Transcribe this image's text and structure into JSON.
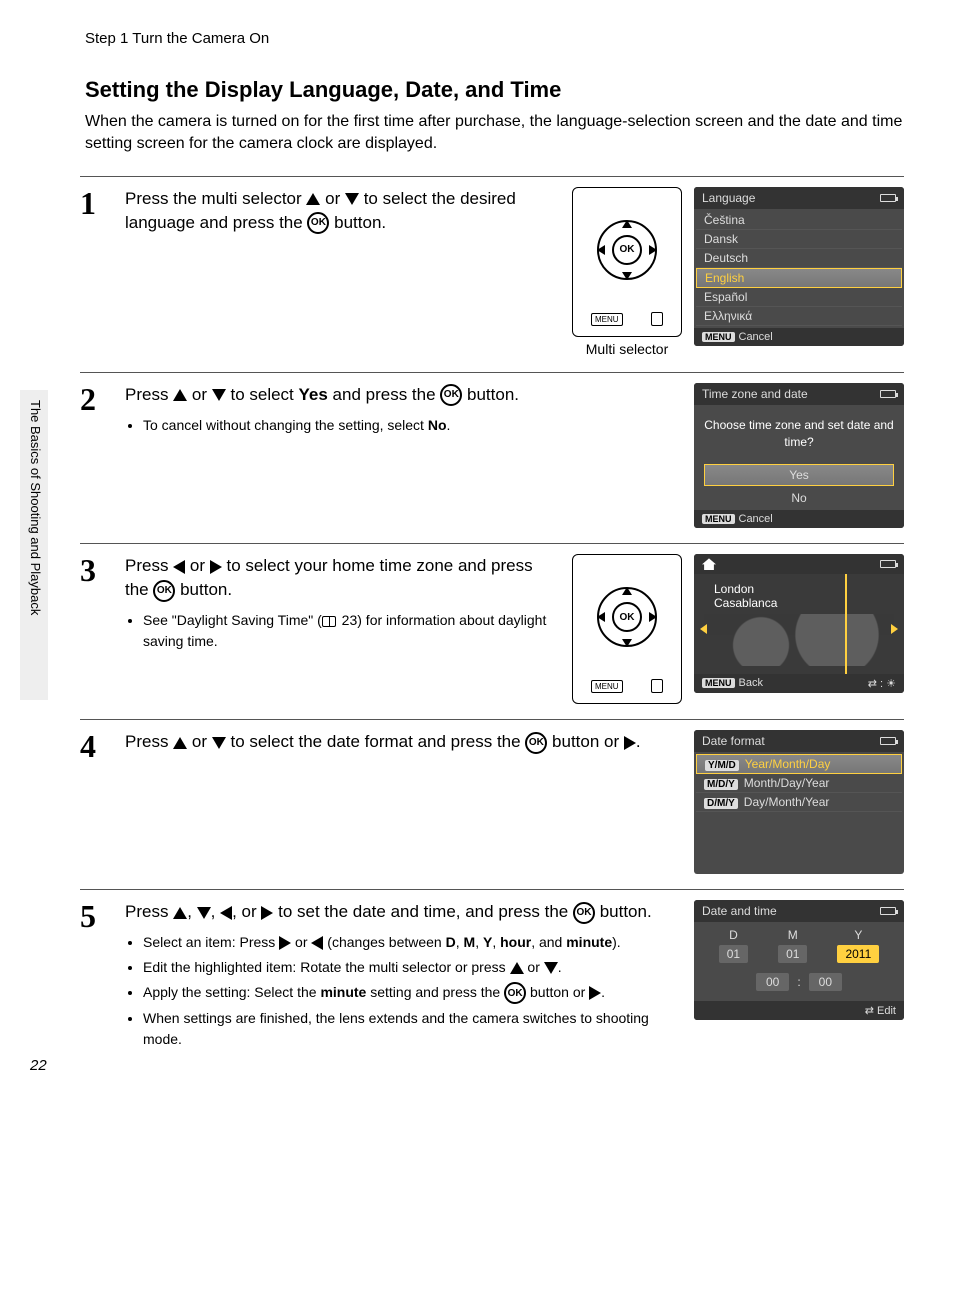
{
  "header": "Step 1 Turn the Camera On",
  "title": "Setting the Display Language, Date, and Time",
  "intro": "When the camera is turned on for the first time after purchase, the language-selection screen and the date and time setting screen for the camera clock are displayed.",
  "side_tab": "The Basics of Shooting and Playback",
  "page_number": "22",
  "ok_label": "OK",
  "menu_label": "MENU",
  "multi_selector_label": "Multi selector",
  "steps": {
    "s1": {
      "num": "1",
      "text_a": "Press the multi selector ",
      "text_b": " or ",
      "text_c": " to select the desired language and press the ",
      "text_d": " button."
    },
    "s2": {
      "num": "2",
      "text_a": "Press ",
      "text_b": " or ",
      "text_c": " to select ",
      "yes": "Yes",
      "text_d": " and press the ",
      "text_e": " button.",
      "bullet": "To cancel without changing the setting, select ",
      "no": "No"
    },
    "s3": {
      "num": "3",
      "text_a": "Press ",
      "text_b": " or ",
      "text_c": " to select your home time zone and press the ",
      "text_d": " button.",
      "bullet_a": "See \"Daylight Saving Time\" (",
      "bullet_ref": " 23) for information about daylight saving time."
    },
    "s4": {
      "num": "4",
      "text_a": "Press ",
      "text_b": " or ",
      "text_c": " to select the date format and press the ",
      "text_d": " button or ",
      "text_e": "."
    },
    "s5": {
      "num": "5",
      "text_a": "Press ",
      "text_comma": ", ",
      "text_or": ", or ",
      "text_b": " to set the date and time, and press the ",
      "text_c": " button.",
      "b1_a": "Select an item: Press ",
      "b1_b": " or ",
      "b1_c": " (changes between ",
      "b1_D": "D",
      "b1_M": "M",
      "b1_Y": "Y",
      "b1_hour": "hour",
      "b1_and": ", and ",
      "b1_minute": "minute",
      "b1_end": ").",
      "b2_a": "Edit the highlighted item: Rotate the multi selector or press ",
      "b2_b": " or ",
      "b2_c": ".",
      "b3_a": "Apply the setting: Select the ",
      "b3_minute": "minute",
      "b3_b": " setting and press the ",
      "b3_c": " button or ",
      "b3_d": ".",
      "b4": "When settings are finished, the lens extends and the camera switches to shooting mode."
    }
  },
  "lcd": {
    "language": {
      "title": "Language",
      "items": [
        "Čeština",
        "Dansk",
        "Deutsch",
        "English",
        "Español",
        "Ελληνικά"
      ],
      "selected_index": 3,
      "cancel": "Cancel"
    },
    "timezone_prompt": {
      "title": "Time zone and date",
      "prompt": "Choose time zone and set date and time?",
      "yes": "Yes",
      "no": "No",
      "cancel": "Cancel"
    },
    "timezone_map": {
      "city1": "London",
      "city2": "Casablanca",
      "back": "Back"
    },
    "date_format": {
      "title": "Date format",
      "options": [
        {
          "code": "Y/M/D",
          "label": "Year/Month/Day"
        },
        {
          "code": "M/D/Y",
          "label": "Month/Day/Year"
        },
        {
          "code": "D/M/Y",
          "label": "Day/Month/Year"
        }
      ],
      "selected_index": 0
    },
    "date_time": {
      "title": "Date and time",
      "D_label": "D",
      "M_label": "M",
      "Y_label": "Y",
      "D": "01",
      "M": "01",
      "Y": "2011",
      "hh": "00",
      "mm": "00",
      "edit": "Edit"
    }
  },
  "colors": {
    "lcd_bg": "#4a4a4a",
    "lcd_header": "#333333",
    "highlight": "#ffd040",
    "text_light": "#dddddd"
  }
}
